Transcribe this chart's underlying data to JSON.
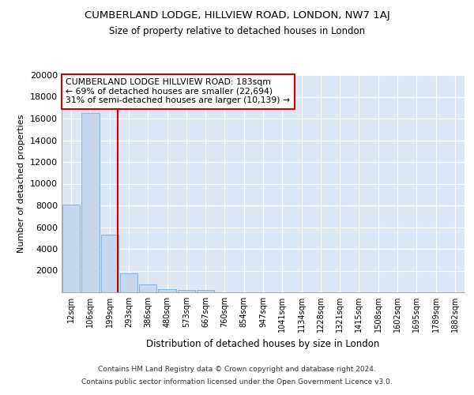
{
  "title": "CUMBERLAND LODGE, HILLVIEW ROAD, LONDON, NW7 1AJ",
  "subtitle": "Size of property relative to detached houses in London",
  "xlabel": "Distribution of detached houses by size in London",
  "ylabel": "Number of detached properties",
  "bin_labels": [
    "12sqm",
    "106sqm",
    "199sqm",
    "293sqm",
    "386sqm",
    "480sqm",
    "573sqm",
    "667sqm",
    "760sqm",
    "854sqm",
    "947sqm",
    "1041sqm",
    "1134sqm",
    "1228sqm",
    "1321sqm",
    "1415sqm",
    "1508sqm",
    "1602sqm",
    "1695sqm",
    "1789sqm",
    "1882sqm"
  ],
  "bar_values": [
    8100,
    16500,
    5300,
    1750,
    750,
    300,
    250,
    200,
    0,
    0,
    0,
    0,
    0,
    0,
    0,
    0,
    0,
    0,
    0,
    0,
    0
  ],
  "bar_color": "#c5d8f0",
  "bar_edge_color": "#7aadda",
  "red_line_index": 2,
  "red_line_color": "#cc0000",
  "annotation_text": "CUMBERLAND LODGE HILLVIEW ROAD: 183sqm\n← 69% of detached houses are smaller (22,694)\n31% of semi-detached houses are larger (10,139) →",
  "annotation_box_facecolor": "#ffffff",
  "annotation_box_edgecolor": "#cc0000",
  "ylim": [
    0,
    20000
  ],
  "yticks": [
    0,
    2000,
    4000,
    6000,
    8000,
    10000,
    12000,
    14000,
    16000,
    18000,
    20000
  ],
  "footer_line1": "Contains HM Land Registry data © Crown copyright and database right 2024.",
  "footer_line2": "Contains public sector information licensed under the Open Government Licence v3.0.",
  "fig_bg_color": "#ffffff",
  "plot_bg_color": "#dce8f5"
}
